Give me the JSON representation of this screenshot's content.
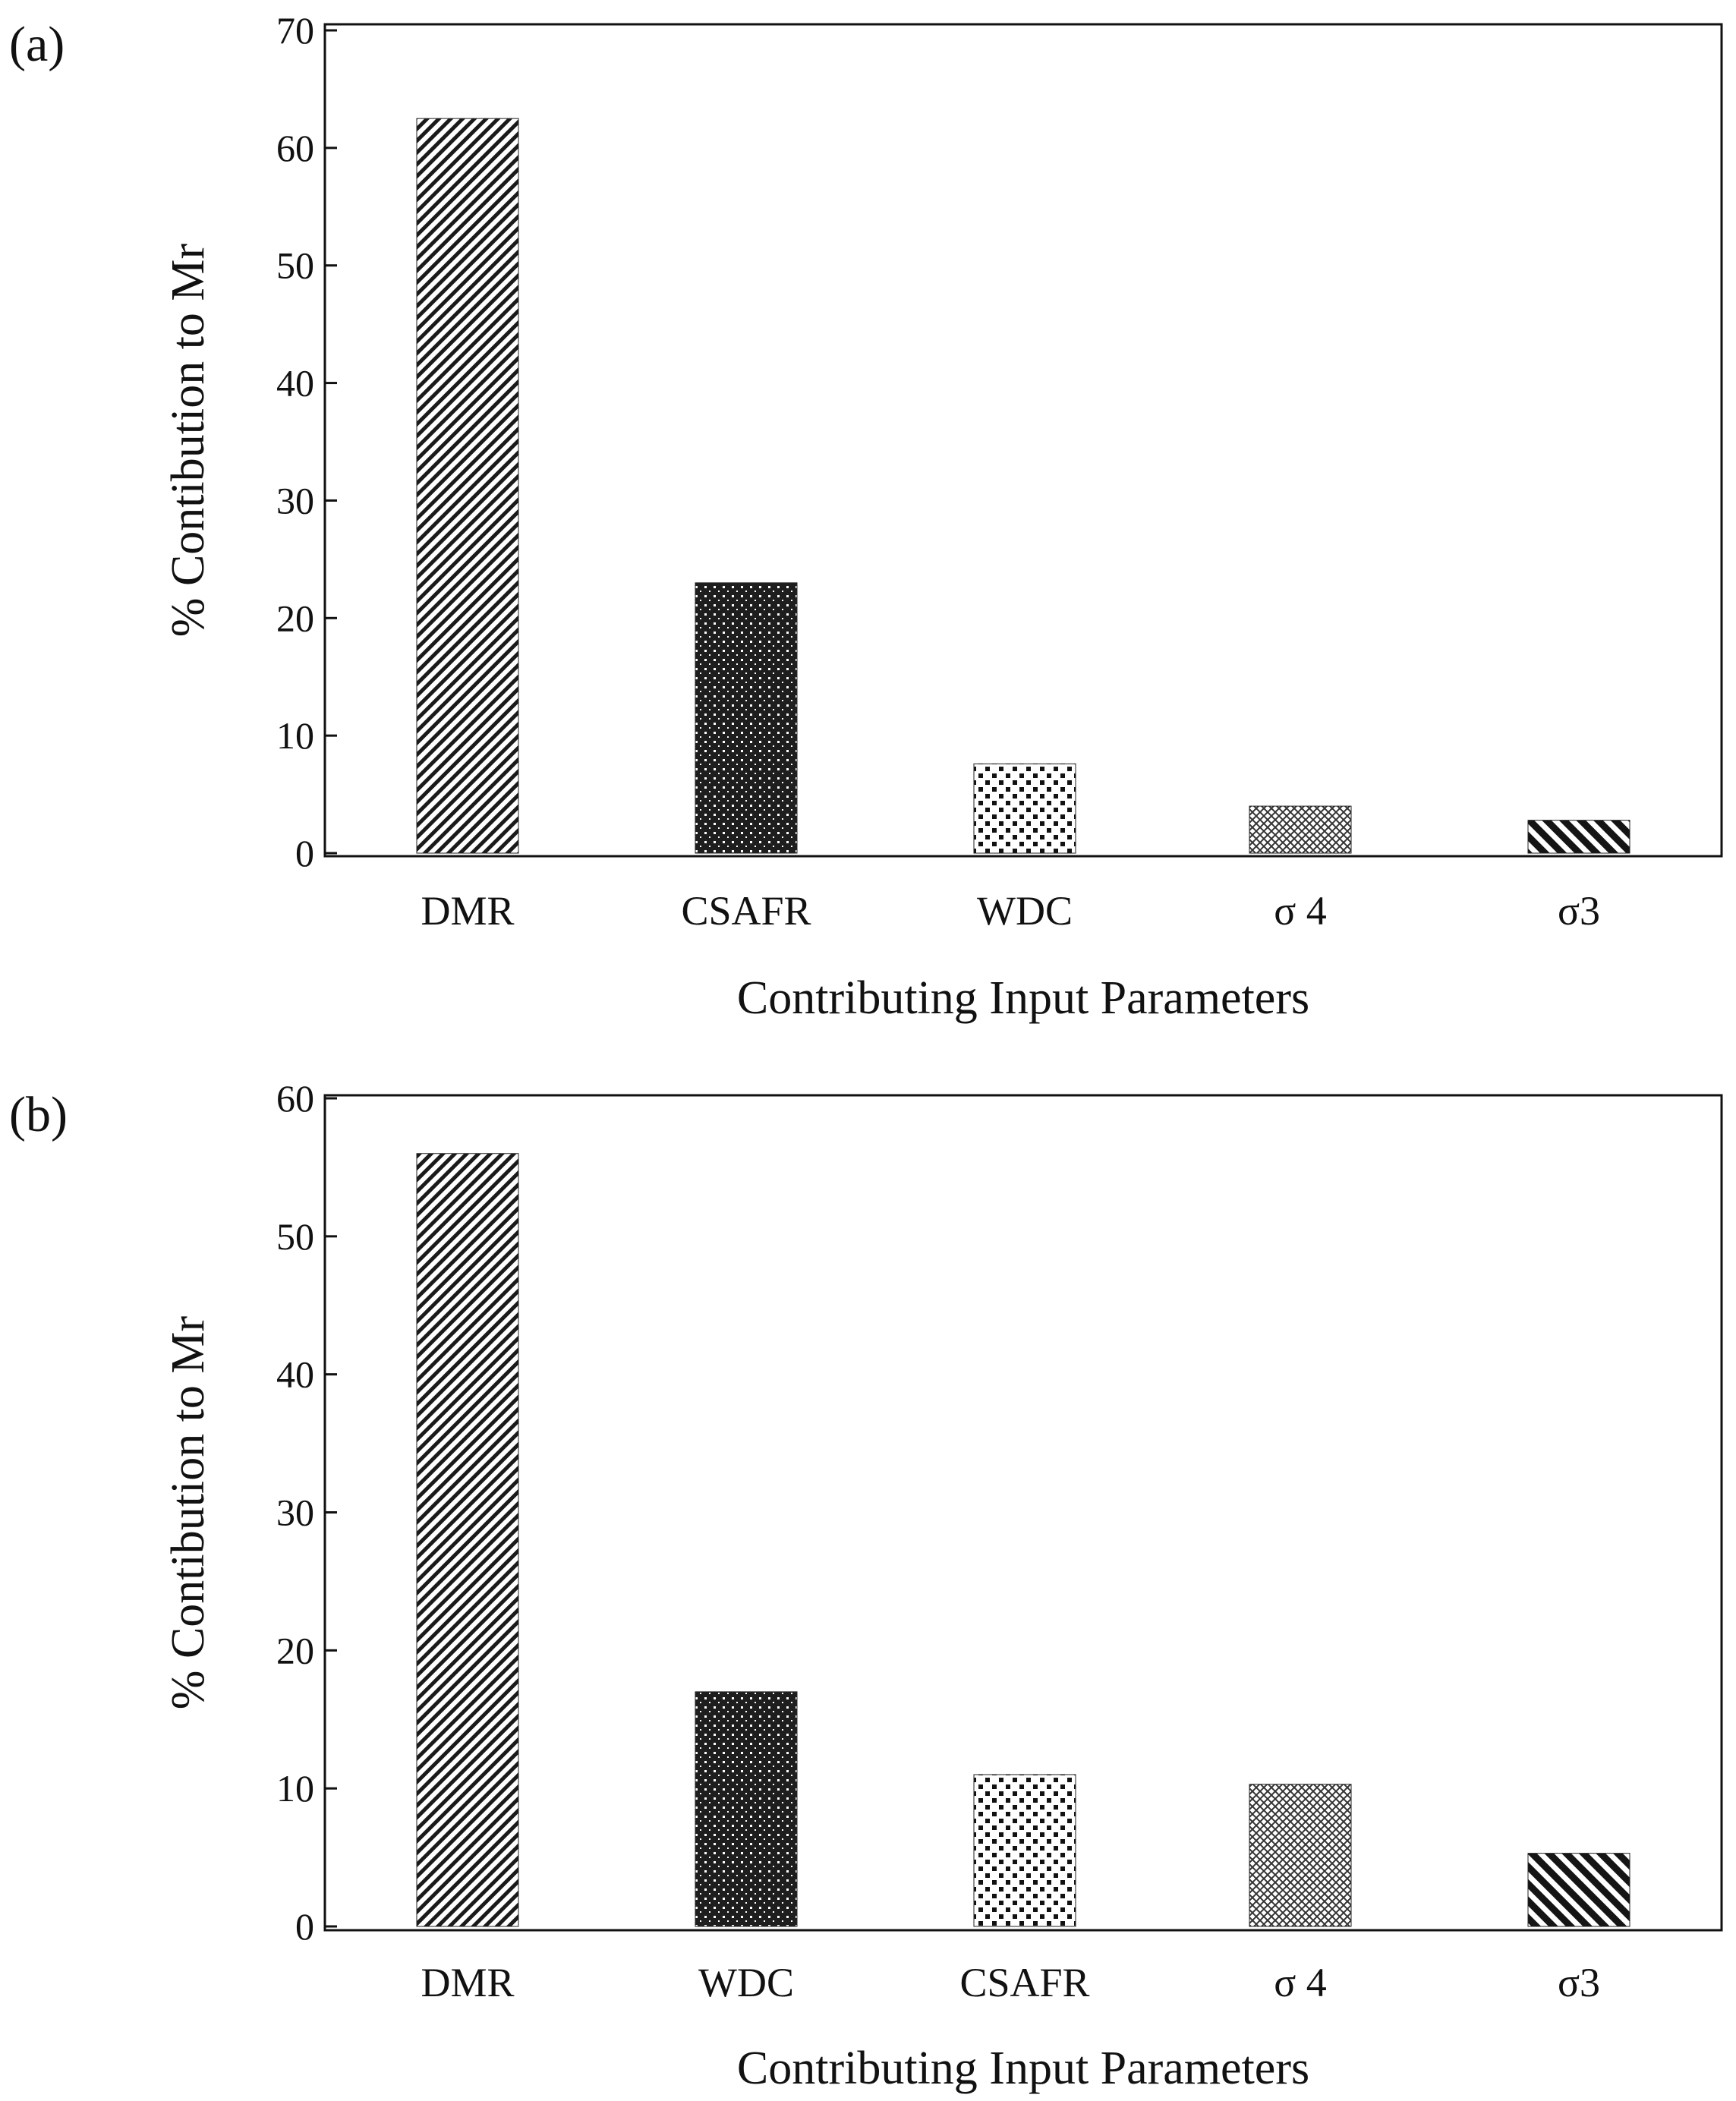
{
  "chart_data": [
    {
      "panel": "(a)",
      "type": "bar",
      "categories": [
        "DMR",
        "CSAFR",
        "WDC",
        "σ 4",
        "σ3"
      ],
      "values": [
        62.5,
        23.0,
        7.6,
        4.0,
        2.8
      ],
      "patterns": [
        "diag-fine",
        "dots-dense",
        "dots-sparse",
        "crosshatch",
        "diag-bold"
      ],
      "xlabel": "Contributing Input Parameters",
      "ylabel": "% Contibution to Mr",
      "ylim": [
        0,
        70
      ],
      "yticks": [
        0,
        10,
        20,
        30,
        40,
        50,
        60,
        70
      ],
      "grid": false
    },
    {
      "panel": "(b)",
      "type": "bar",
      "categories": [
        "DMR",
        "WDC",
        "CSAFR",
        "σ 4",
        "σ3"
      ],
      "values": [
        56.0,
        17.0,
        11.0,
        10.3,
        5.3
      ],
      "patterns": [
        "diag-fine",
        "dots-dense",
        "dots-sparse",
        "crosshatch",
        "diag-bold"
      ],
      "xlabel": "Contributing Input Parameters",
      "ylabel": "% Contibution to Mr",
      "ylim": [
        0,
        60
      ],
      "yticks": [
        0,
        10,
        20,
        30,
        40,
        50,
        60
      ],
      "grid": false
    }
  ],
  "colors": {
    "ink": "#111111",
    "background": "#ffffff"
  }
}
